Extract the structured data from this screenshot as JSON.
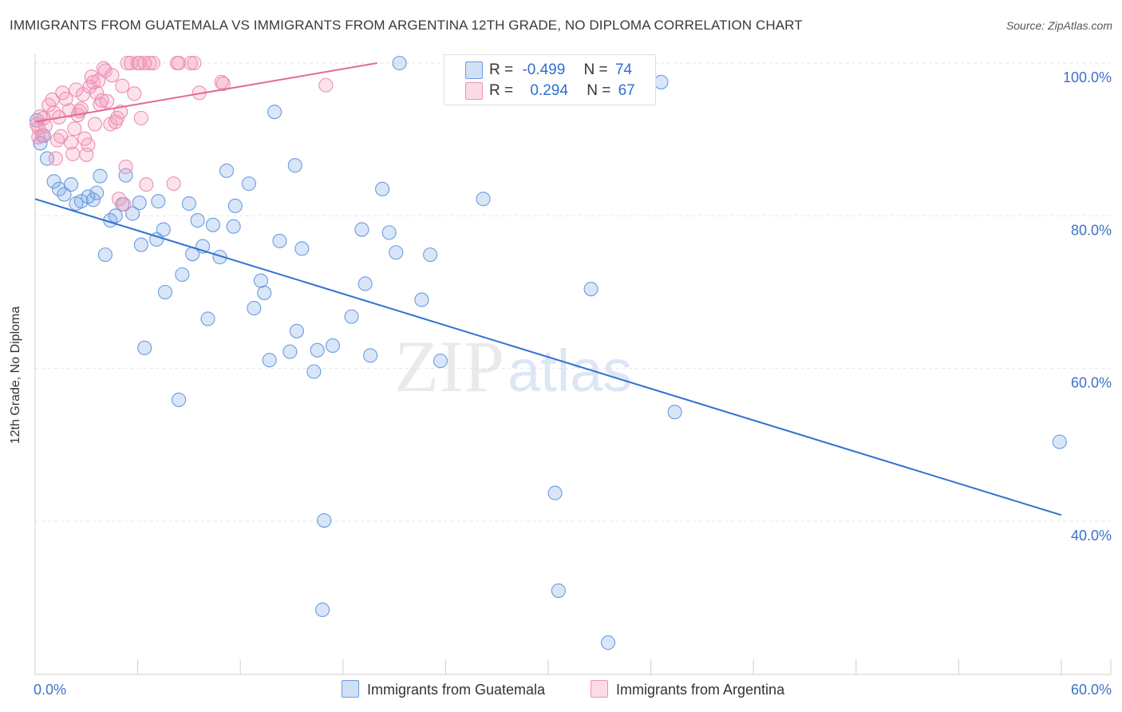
{
  "title": "IMMIGRANTS FROM GUATEMALA VS IMMIGRANTS FROM ARGENTINA 12TH GRADE, NO DIPLOMA CORRELATION CHART",
  "source": "Source: ZipAtlas.com",
  "watermark": {
    "zip": "ZIP",
    "atlas": "atlas"
  },
  "legend": {
    "guatemala": {
      "r_label": "R =",
      "r_value": "-0.499",
      "n_label": "N =",
      "n_value": "74"
    },
    "argentina": {
      "r_label": "R =",
      "r_value": "0.294",
      "n_label": "N =",
      "n_value": "67"
    }
  },
  "bottom_legend": {
    "guatemala": "Immigrants from Guatemala",
    "argentina": "Immigrants from Argentina"
  },
  "colors": {
    "blue_fill": "rgba(120,165,230,0.28)",
    "blue_stroke": "#6a9be0",
    "blue_line": "#2f72d0",
    "pink_fill": "rgba(245,150,185,0.28)",
    "pink_stroke": "#ee8fb2",
    "pink_line": "#e46a98",
    "axis_label": "#3c72c8"
  },
  "chart_data": {
    "type": "scatter",
    "xlabel": "",
    "ylabel": "12th Grade, No Diploma",
    "xlim": [
      0,
      60
    ],
    "ylim": [
      20,
      104
    ],
    "x_tick_labels": [
      {
        "value": 0,
        "label": "0.0%"
      },
      {
        "value": 60,
        "label": "60.0%"
      }
    ],
    "y_tick_labels": [
      {
        "value": 40,
        "label": "40.0%"
      },
      {
        "value": 60,
        "label": "60.0%"
      },
      {
        "value": 80,
        "label": "80.0%"
      },
      {
        "value": 100,
        "label": "100.0%"
      }
    ],
    "grid": true,
    "legend_position": "top-center",
    "series": [
      {
        "name": "Immigrants from Guatemala",
        "color": "blue",
        "trend": {
          "x": [
            0,
            60
          ],
          "y": [
            82.2,
            40.8
          ]
        },
        "points": [
          [
            0.3,
            89.5
          ],
          [
            0.7,
            87.5
          ],
          [
            0.5,
            90.5
          ],
          [
            1.1,
            84.5
          ],
          [
            1.4,
            83.5
          ],
          [
            1.7,
            82.8
          ],
          [
            2.1,
            84.1
          ],
          [
            2.4,
            81.6
          ],
          [
            2.7,
            81.9
          ],
          [
            3.1,
            82.5
          ],
          [
            3.4,
            82.1
          ],
          [
            3.6,
            83
          ],
          [
            3.8,
            85.2
          ],
          [
            4.1,
            74.9
          ],
          [
            4.4,
            79.4
          ],
          [
            4.7,
            80
          ],
          [
            5.1,
            81.5
          ],
          [
            5.3,
            85.3
          ],
          [
            5.7,
            80.3
          ],
          [
            6.1,
            81.7
          ],
          [
            6.2,
            76.2
          ],
          [
            6.4,
            62.7
          ],
          [
            7.2,
            81.9
          ],
          [
            7.1,
            76.9
          ],
          [
            7.5,
            78.2
          ],
          [
            7.6,
            70
          ],
          [
            8.4,
            55.9
          ],
          [
            8.6,
            72.3
          ],
          [
            9.0,
            81.6
          ],
          [
            9.2,
            75
          ],
          [
            9.5,
            79.4
          ],
          [
            9.8,
            76
          ],
          [
            10.1,
            66.5
          ],
          [
            10.4,
            78.8
          ],
          [
            10.8,
            74.6
          ],
          [
            11.2,
            85.9
          ],
          [
            11.6,
            78.6
          ],
          [
            11.7,
            81.3
          ],
          [
            12.5,
            84.2
          ],
          [
            12.8,
            67.9
          ],
          [
            13.2,
            71.5
          ],
          [
            13.4,
            69.9
          ],
          [
            13.7,
            61.1
          ],
          [
            14.0,
            93.6
          ],
          [
            14.3,
            76.7
          ],
          [
            14.9,
            62.2
          ],
          [
            15.2,
            86.6
          ],
          [
            15.3,
            64.9
          ],
          [
            15.6,
            75.7
          ],
          [
            16.3,
            59.6
          ],
          [
            16.5,
            62.4
          ],
          [
            16.8,
            28.4
          ],
          [
            16.9,
            40.1
          ],
          [
            17.4,
            63
          ],
          [
            18.5,
            66.8
          ],
          [
            19.1,
            78.2
          ],
          [
            19.3,
            71.1
          ],
          [
            19.6,
            61.7
          ],
          [
            20.3,
            83.5
          ],
          [
            20.7,
            77.8
          ],
          [
            21.1,
            75.2
          ],
          [
            21.3,
            100
          ],
          [
            22.6,
            69
          ],
          [
            23.1,
            74.9
          ],
          [
            23.7,
            61
          ],
          [
            26.2,
            82.2
          ],
          [
            30.4,
            43.7
          ],
          [
            30.6,
            30.9
          ],
          [
            32.5,
            70.4
          ],
          [
            33.5,
            24.1
          ],
          [
            36.6,
            97.5
          ],
          [
            37.4,
            54.3
          ],
          [
            59.9,
            50.4
          ],
          [
            0.1,
            92.5
          ]
        ]
      },
      {
        "name": "Immigrants from Argentina",
        "color": "pink",
        "trend": {
          "x": [
            0,
            20
          ],
          "y": [
            92.3,
            100
          ]
        },
        "points": [
          [
            0.1,
            92
          ],
          [
            0.2,
            91.5
          ],
          [
            0.3,
            93
          ],
          [
            0.4,
            90.5
          ],
          [
            0.5,
            92.8
          ],
          [
            0.6,
            91.8
          ],
          [
            0.8,
            94.5
          ],
          [
            1,
            95.2
          ],
          [
            1.1,
            93.5
          ],
          [
            1.2,
            87.5
          ],
          [
            1.3,
            89.9
          ],
          [
            1.4,
            92.9
          ],
          [
            1.5,
            90.4
          ],
          [
            1.6,
            96.1
          ],
          [
            1.8,
            95.3
          ],
          [
            2.0,
            93.8
          ],
          [
            2.1,
            89.6
          ],
          [
            2.2,
            88.1
          ],
          [
            2.3,
            91.4
          ],
          [
            2.4,
            96.5
          ],
          [
            2.5,
            93.2
          ],
          [
            2.6,
            93.7
          ],
          [
            2.7,
            94
          ],
          [
            2.8,
            95.9
          ],
          [
            2.9,
            90.1
          ],
          [
            3.0,
            88
          ],
          [
            3.1,
            89.3
          ],
          [
            3.2,
            96.9
          ],
          [
            3.3,
            98.2
          ],
          [
            3.4,
            97.5
          ],
          [
            3.5,
            92
          ],
          [
            3.6,
            96.1
          ],
          [
            3.7,
            97.7
          ],
          [
            3.8,
            94.6
          ],
          [
            3.9,
            95.1
          ],
          [
            4.0,
            99.3
          ],
          [
            4.1,
            99
          ],
          [
            4.2,
            95
          ],
          [
            4.4,
            92
          ],
          [
            4.5,
            98.4
          ],
          [
            4.7,
            92.3
          ],
          [
            4.8,
            92.8
          ],
          [
            4.9,
            82.2
          ],
          [
            5.0,
            93.6
          ],
          [
            5.1,
            97
          ],
          [
            5.2,
            81.5
          ],
          [
            5.3,
            86.4
          ],
          [
            5.4,
            100
          ],
          [
            5.6,
            100
          ],
          [
            5.8,
            96
          ],
          [
            6.0,
            100
          ],
          [
            6.1,
            100
          ],
          [
            6.2,
            92.8
          ],
          [
            6.4,
            100
          ],
          [
            6.5,
            84.1
          ],
          [
            6.7,
            100
          ],
          [
            6.9,
            100
          ],
          [
            8.1,
            84.2
          ],
          [
            8.3,
            100
          ],
          [
            8.4,
            100
          ],
          [
            9.1,
            100
          ],
          [
            9.3,
            100
          ],
          [
            9.6,
            96.1
          ],
          [
            10.9,
            97.5
          ],
          [
            11.0,
            97.3
          ],
          [
            17.0,
            97.1
          ],
          [
            0.2,
            90.3
          ]
        ]
      }
    ]
  }
}
